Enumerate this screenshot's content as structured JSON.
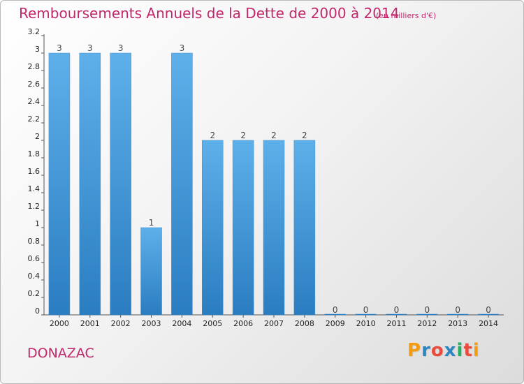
{
  "commune": "DONAZAC",
  "logo": {
    "text": "Proxiti",
    "letters": [
      {
        "ch": "P",
        "color": "#f39c12"
      },
      {
        "ch": "r",
        "color": "#2e86c1"
      },
      {
        "ch": "o",
        "color": "#e74c3c"
      },
      {
        "ch": "x",
        "color": "#2e86c1"
      },
      {
        "ch": "i",
        "color": "#27ae60"
      },
      {
        "ch": "t",
        "color": "#e74c3c"
      },
      {
        "ch": "i",
        "color": "#f39c12"
      }
    ]
  },
  "chart_data": {
    "type": "bar",
    "title": "Remboursements Annuels de la Dette de 2000 à 2014",
    "subtitle": "(en milliers d'€)",
    "xlabel": "",
    "ylabel": "",
    "categories": [
      "2000",
      "2001",
      "2002",
      "2003",
      "2004",
      "2005",
      "2006",
      "2007",
      "2008",
      "2009",
      "2010",
      "2011",
      "2012",
      "2013",
      "2014"
    ],
    "values": [
      3,
      3,
      3,
      1,
      3,
      2,
      2,
      2,
      2,
      0,
      0,
      0,
      0,
      0,
      0
    ],
    "data_labels": [
      "3",
      "3",
      "3",
      "1",
      "3",
      "2",
      "2",
      "2",
      "2",
      "0",
      "0",
      "0",
      "0",
      "0",
      "0"
    ],
    "ylim": [
      0,
      3.2
    ],
    "y_ticks": [
      0,
      0.2,
      0.4,
      0.6,
      0.8,
      1,
      1.2,
      1.4,
      1.6,
      1.8,
      2,
      2.2,
      2.4,
      2.6,
      2.8,
      3,
      3.2
    ],
    "y_tick_labels": [
      "0",
      "0.2",
      "0.4",
      "0.6",
      "0.8",
      "1",
      "1.2",
      "1.4",
      "1.6",
      "1.8",
      "2",
      "2.2",
      "2.4",
      "2.6",
      "2.8",
      "3",
      "3.2"
    ],
    "grid": false,
    "legend": "none",
    "colors": {
      "bar_top": "#5eb0ea",
      "bar_bottom": "#2a7dc0",
      "title": "#c0286b"
    }
  }
}
